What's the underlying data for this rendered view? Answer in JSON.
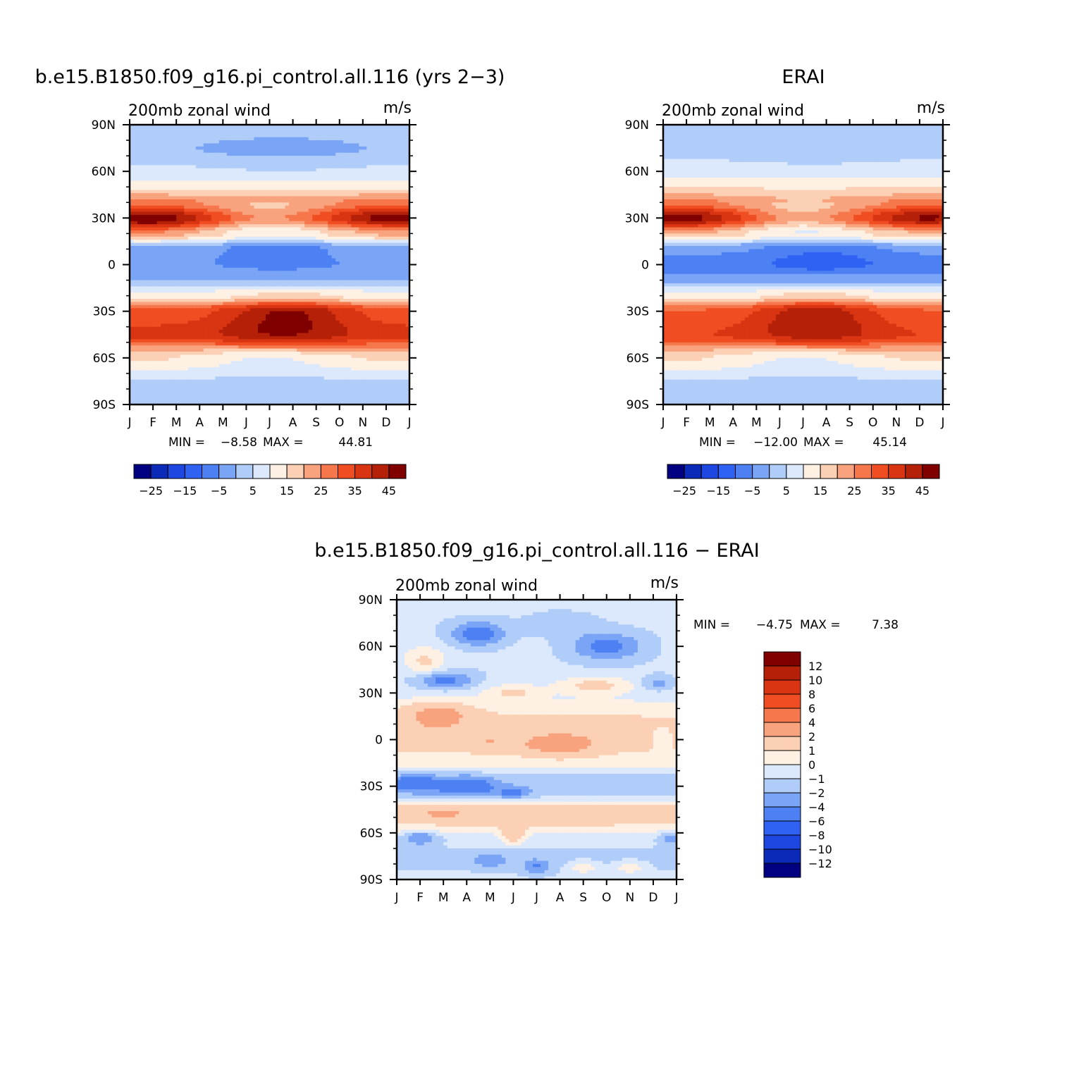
{
  "colors": {
    "fill_levels": [
      "#000080",
      "#0b2ab8",
      "#1d47e0",
      "#2f62f2",
      "#4d81f3",
      "#7aa4f6",
      "#b0ccf9",
      "#dce9fc",
      "#fff0e4",
      "#fcd0b4",
      "#f9a37e",
      "#f6774b",
      "#f04e22",
      "#d93512",
      "#b42108",
      "#800000"
    ]
  },
  "chart_data": [
    {
      "type": "heatmap",
      "subtype": "filled-contour",
      "title": "b.e15.B1850.f09_g16.pi_control.all.116 (yrs 2−3)",
      "left_label": "200mb zonal wind",
      "right_label": "m/s",
      "x_ticks": [
        "J",
        "F",
        "M",
        "A",
        "M",
        "J",
        "J",
        "A",
        "S",
        "O",
        "N",
        "D",
        "J"
      ],
      "y_ticks": [
        "90N",
        "60N",
        "30N",
        "0",
        "30S",
        "60S",
        "90S"
      ],
      "xlim": [
        0,
        12
      ],
      "ylim": [
        -90,
        90
      ],
      "stats": {
        "min_label": "MIN =",
        "min": "−8.58",
        "max_label": "MAX =",
        "max": "44.81"
      },
      "colorbar": {
        "orientation": "horizontal",
        "levels": [
          -30,
          -25,
          -20,
          -15,
          -10,
          -5,
          0,
          5,
          10,
          15,
          20,
          25,
          30,
          35,
          40,
          45
        ],
        "labels": [
          "−25",
          "−15",
          "−5",
          "5",
          "15",
          "25",
          "35",
          "45"
        ]
      },
      "lat_bands": [
        {
          "lat": 90,
          "value": 3
        },
        {
          "lat": 75,
          "value": 1
        },
        {
          "lat": 60,
          "value": 6
        },
        {
          "lat": 50,
          "value": 14
        },
        {
          "lat": 40,
          "value": 25
        },
        {
          "lat": 30,
          "value": 38
        },
        {
          "lat": 20,
          "value": 18
        },
        {
          "lat": 10,
          "value": -2
        },
        {
          "lat": 0,
          "value": -4
        },
        {
          "lat": -10,
          "value": 0
        },
        {
          "lat": -20,
          "value": 12
        },
        {
          "lat": -30,
          "value": 32
        },
        {
          "lat": -45,
          "value": 36
        },
        {
          "lat": -60,
          "value": 16
        },
        {
          "lat": -75,
          "value": 5
        },
        {
          "lat": -90,
          "value": 2
        }
      ],
      "features": [
        {
          "month": 0.8,
          "lat": 28,
          "value": 12,
          "month_radius": 2.2,
          "lat_radius": 10
        },
        {
          "month": 11.3,
          "lat": 30,
          "value": 10,
          "month_radius": 2.0,
          "lat_radius": 10
        },
        {
          "month": 6.0,
          "lat": 30,
          "value": -14,
          "month_radius": 2.4,
          "lat_radius": 10
        },
        {
          "month": 6.3,
          "lat": 9,
          "value": -7,
          "month_radius": 2.3,
          "lat_radius": 11
        },
        {
          "month": 6.8,
          "lat": -30,
          "value": 12,
          "month_radius": 2.5,
          "lat_radius": 11
        },
        {
          "month": 6.5,
          "lat": -45,
          "value": 8,
          "month_radius": 3.0,
          "lat_radius": 12
        },
        {
          "month": 6.0,
          "lat": -60,
          "value": -8,
          "month_radius": 3.0,
          "lat_radius": 9
        },
        {
          "month": 6.5,
          "lat": 73,
          "value": -3,
          "month_radius": 3.5,
          "lat_radius": 12
        }
      ]
    },
    {
      "type": "heatmap",
      "subtype": "filled-contour",
      "title": "ERAI",
      "left_label": "200mb zonal wind",
      "right_label": "m/s",
      "x_ticks": [
        "J",
        "F",
        "M",
        "A",
        "M",
        "J",
        "J",
        "A",
        "S",
        "O",
        "N",
        "D",
        "J"
      ],
      "y_ticks": [
        "90N",
        "60N",
        "30N",
        "0",
        "30S",
        "60S",
        "90S"
      ],
      "xlim": [
        0,
        12
      ],
      "ylim": [
        -90,
        90
      ],
      "stats": {
        "min_label": "MIN =",
        "min": "−12.00",
        "max_label": "MAX =",
        "max": "45.14"
      },
      "colorbar": {
        "orientation": "horizontal",
        "levels": [
          -30,
          -25,
          -20,
          -15,
          -10,
          -5,
          0,
          5,
          10,
          15,
          20,
          25,
          30,
          35,
          40,
          45
        ],
        "labels": [
          "−25",
          "−15",
          "−5",
          "5",
          "15",
          "25",
          "35",
          "45"
        ]
      },
      "lat_bands": [
        {
          "lat": 90,
          "value": 3
        },
        {
          "lat": 75,
          "value": 3
        },
        {
          "lat": 60,
          "value": 8
        },
        {
          "lat": 50,
          "value": 15
        },
        {
          "lat": 40,
          "value": 24
        },
        {
          "lat": 30,
          "value": 36
        },
        {
          "lat": 20,
          "value": 16
        },
        {
          "lat": 10,
          "value": -4
        },
        {
          "lat": 0,
          "value": -8
        },
        {
          "lat": -10,
          "value": -2
        },
        {
          "lat": -20,
          "value": 12
        },
        {
          "lat": -30,
          "value": 30
        },
        {
          "lat": -45,
          "value": 34
        },
        {
          "lat": -60,
          "value": 16
        },
        {
          "lat": -75,
          "value": 5
        },
        {
          "lat": -90,
          "value": 2
        }
      ],
      "features": [
        {
          "month": 0.8,
          "lat": 29,
          "value": 12,
          "month_radius": 2.2,
          "lat_radius": 10
        },
        {
          "month": 11.3,
          "lat": 30,
          "value": 10,
          "month_radius": 2.0,
          "lat_radius": 10
        },
        {
          "month": 6.0,
          "lat": 30,
          "value": -14,
          "month_radius": 2.4,
          "lat_radius": 10
        },
        {
          "month": 6.8,
          "lat": 5,
          "value": -6,
          "month_radius": 2.3,
          "lat_radius": 11
        },
        {
          "month": 6.5,
          "lat": -30,
          "value": 12,
          "month_radius": 2.5,
          "lat_radius": 11
        },
        {
          "month": 6.5,
          "lat": -45,
          "value": 8,
          "month_radius": 3.0,
          "lat_radius": 12
        },
        {
          "month": 6.0,
          "lat": -60,
          "value": -8,
          "month_radius": 3.0,
          "lat_radius": 9
        },
        {
          "month": 6.5,
          "lat": 73,
          "value": -3,
          "month_radius": 3.5,
          "lat_radius": 12
        }
      ]
    },
    {
      "type": "heatmap",
      "subtype": "filled-contour-difference",
      "title": "b.e15.B1850.f09_g16.pi_control.all.116 − ERAI",
      "left_label": "200mb zonal wind",
      "right_label": "m/s",
      "x_ticks": [
        "J",
        "F",
        "M",
        "A",
        "M",
        "J",
        "J",
        "A",
        "S",
        "O",
        "N",
        "D",
        "J"
      ],
      "y_ticks": [
        "90N",
        "60N",
        "30N",
        "0",
        "30S",
        "60S",
        "90S"
      ],
      "xlim": [
        0,
        12
      ],
      "ylim": [
        -90,
        90
      ],
      "stats": {
        "min_label": "MIN =",
        "min": "−4.75",
        "max_label": "MAX =",
        "max": "7.38"
      },
      "colorbar": {
        "orientation": "vertical",
        "levels": [
          14,
          12,
          10,
          8,
          6,
          4,
          2,
          1,
          0,
          -1,
          -2,
          -4,
          -6,
          -8,
          -10,
          -12
        ],
        "labels": [
          "12",
          "10",
          "8",
          "6",
          "4",
          "2",
          "1",
          "0",
          "−1",
          "−2",
          "−4",
          "−6",
          "−8",
          "−10",
          "−12"
        ]
      },
      "lat_bands": [
        {
          "lat": 90,
          "value": 0.3
        },
        {
          "lat": 75,
          "value": 0.2
        },
        {
          "lat": 60,
          "value": 0.3
        },
        {
          "lat": 45,
          "value": 0.2
        },
        {
          "lat": 30,
          "value": 0.6
        },
        {
          "lat": 15,
          "value": 2.0
        },
        {
          "lat": 0,
          "value": 2.5
        },
        {
          "lat": -15,
          "value": 1.5
        },
        {
          "lat": -25,
          "value": -0.5
        },
        {
          "lat": -33,
          "value": -0.8
        },
        {
          "lat": -45,
          "value": 2.5
        },
        {
          "lat": -55,
          "value": 2.0
        },
        {
          "lat": -65,
          "value": 0.3
        },
        {
          "lat": -75,
          "value": -0.3
        },
        {
          "lat": -90,
          "value": 0.2
        }
      ],
      "features": [
        {
          "month": 1.8,
          "lat": 15,
          "value": 3.5,
          "month_radius": 1.3,
          "lat_radius": 9
        },
        {
          "month": 7.0,
          "lat": -3,
          "value": 3.5,
          "month_radius": 1.6,
          "lat_radius": 7
        },
        {
          "month": 4.0,
          "lat": -2,
          "value": 1.5,
          "month_radius": 0.8,
          "lat_radius": 6
        },
        {
          "month": 3.5,
          "lat": 68,
          "value": -3.0,
          "month_radius": 1.2,
          "lat_radius": 8
        },
        {
          "month": 9.0,
          "lat": 60,
          "value": -2.8,
          "month_radius": 1.6,
          "lat_radius": 9
        },
        {
          "month": 2.0,
          "lat": 38,
          "value": -3.0,
          "month_radius": 1.3,
          "lat_radius": 6
        },
        {
          "month": 11.2,
          "lat": 36,
          "value": -1.8,
          "month_radius": 0.7,
          "lat_radius": 5
        },
        {
          "month": 0.8,
          "lat": -28,
          "value": -3.0,
          "month_radius": 1.0,
          "lat_radius": 5
        },
        {
          "month": 3.0,
          "lat": -30,
          "value": -2.8,
          "month_radius": 1.2,
          "lat_radius": 6
        },
        {
          "month": 5.0,
          "lat": -35,
          "value": -2.0,
          "month_radius": 0.6,
          "lat_radius": 4
        },
        {
          "month": 11.4,
          "lat": 0,
          "value": -1.5,
          "month_radius": 0.4,
          "lat_radius": 6
        },
        {
          "month": 1.2,
          "lat": 50,
          "value": 2.0,
          "month_radius": 0.9,
          "lat_radius": 10
        },
        {
          "month": 8.5,
          "lat": 35,
          "value": 2.0,
          "month_radius": 1.5,
          "lat_radius": 6
        },
        {
          "month": 5.0,
          "lat": 30,
          "value": 1.8,
          "month_radius": 1.2,
          "lat_radius": 5
        },
        {
          "month": 1.0,
          "lat": -63,
          "value": -2.5,
          "month_radius": 0.8,
          "lat_radius": 5
        },
        {
          "month": 11.7,
          "lat": -63,
          "value": -2.0,
          "month_radius": 0.5,
          "lat_radius": 5
        },
        {
          "month": 5.0,
          "lat": -62,
          "value": 3.0,
          "month_radius": 0.5,
          "lat_radius": 5
        },
        {
          "month": 2.0,
          "lat": -48,
          "value": 2.0,
          "month_radius": 1.5,
          "lat_radius": 4
        },
        {
          "month": 6.0,
          "lat": -82,
          "value": -2.0,
          "month_radius": 0.6,
          "lat_radius": 5
        },
        {
          "month": 4.0,
          "lat": -78,
          "value": -1.5,
          "month_radius": 0.8,
          "lat_radius": 5
        },
        {
          "month": 8.0,
          "lat": -82,
          "value": 1.8,
          "month_radius": 0.6,
          "lat_radius": 4
        },
        {
          "month": 10.0,
          "lat": -82,
          "value": 1.8,
          "month_radius": 0.6,
          "lat_radius": 4
        },
        {
          "month": 7.0,
          "lat": 75,
          "value": -0.8,
          "month_radius": 1.5,
          "lat_radius": 8
        }
      ]
    }
  ]
}
